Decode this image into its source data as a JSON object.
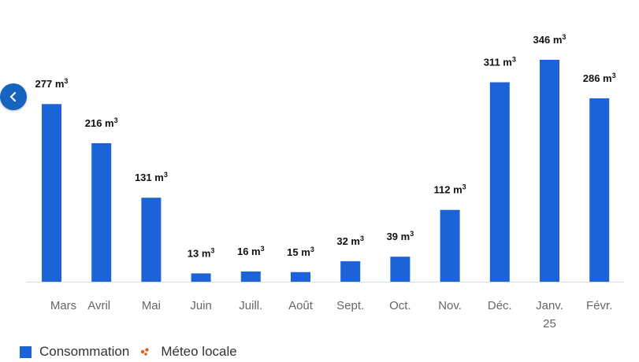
{
  "chart_data": {
    "type": "bar",
    "categories": [
      "Mars",
      "Avril",
      "Mai",
      "Juin",
      "Juill.",
      "Août",
      "Sept.",
      "Oct.",
      "Nov.",
      "Déc.",
      "Janv.",
      "Févr."
    ],
    "category_sublabels": [
      "",
      "",
      "",
      "",
      "",
      "",
      "",
      "",
      "",
      "",
      "25",
      ""
    ],
    "values": [
      277,
      216,
      131,
      13,
      16,
      15,
      32,
      39,
      112,
      311,
      346,
      286
    ],
    "value_labels": [
      "277 m",
      "216 m",
      "131 m",
      "13 m",
      "16 m",
      "15 m",
      "32 m",
      "39 m",
      "112 m",
      "311 m",
      "346 m",
      "286 m"
    ],
    "unit_superscript": "3",
    "ylim": [
      0,
      346
    ],
    "grid": false,
    "legend_position": "bottom-left"
  },
  "legend": {
    "items": [
      {
        "label": "Consommation",
        "color": "#1d63d8",
        "icon": "square"
      },
      {
        "label": "Méteo locale",
        "color": "#e0601b",
        "icon": "weather-dots-icon"
      }
    ]
  },
  "nav": {
    "prev_icon": "chevron-left-icon",
    "color": "#1565c0"
  },
  "colors": {
    "bar": "#1d63d8",
    "axis_line": "#dddddd",
    "tick_text": "#666666",
    "value_text": "#111111"
  }
}
